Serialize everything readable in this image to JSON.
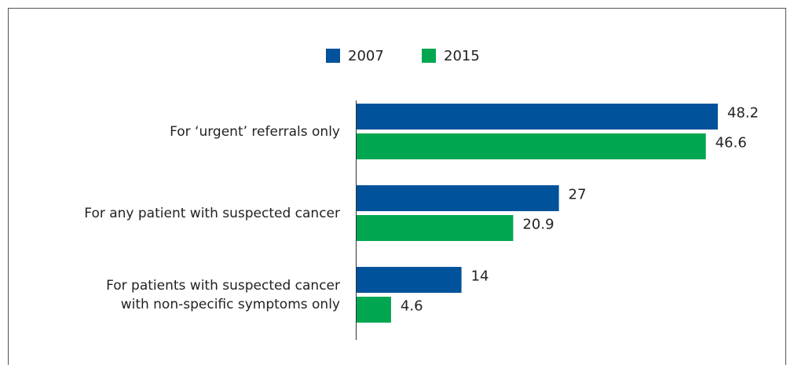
{
  "chart_data": {
    "type": "hbar",
    "categories": [
      "For ‘urgent’ referrals only",
      "For any patient with suspected cancer",
      "For patients with suspected cancer\nwith non-specific symptoms only"
    ],
    "series": [
      {
        "name": "2007",
        "color": "#00529b",
        "values": [
          48.2,
          27,
          14
        ]
      },
      {
        "name": "2015",
        "color": "#00a650",
        "values": [
          46.6,
          20.9,
          4.6
        ]
      }
    ]
  }
}
